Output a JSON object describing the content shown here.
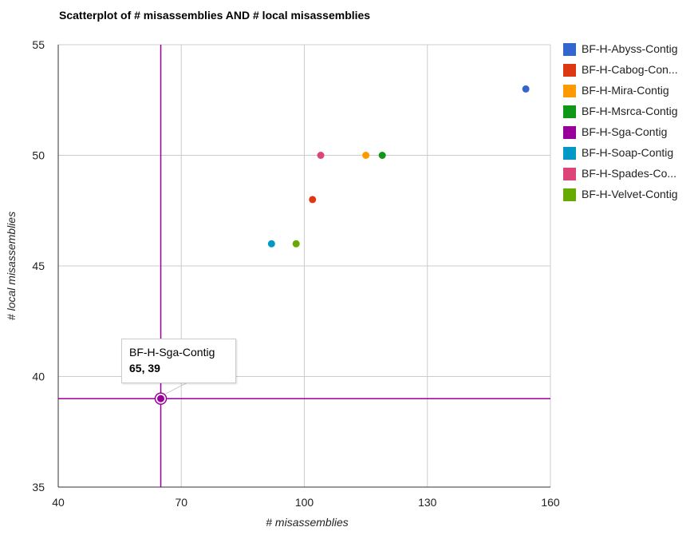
{
  "chart_data": {
    "type": "scatter",
    "title": "Scatterplot of # misassemblies AND # local misassemblies",
    "xlabel": "# misassemblies",
    "ylabel": "# local misassemblies",
    "xlim": [
      40,
      160
    ],
    "ylim": [
      35,
      55
    ],
    "x_ticks": [
      40,
      70,
      100,
      130,
      160
    ],
    "y_ticks": [
      35,
      40,
      45,
      50,
      55
    ],
    "grid": true,
    "legend_position": "right",
    "series": [
      {
        "name": "BF-H-Abyss-Contig",
        "label": "BF-H-Abyss-Contig",
        "color": "#3366cc",
        "x": [
          154
        ],
        "y": [
          53
        ]
      },
      {
        "name": "BF-H-Cabog-Contig",
        "label": "BF-H-Cabog-Con...",
        "color": "#dc3912",
        "x": [
          102
        ],
        "y": [
          48
        ]
      },
      {
        "name": "BF-H-Mira-Contig",
        "label": "BF-H-Mira-Contig",
        "color": "#ff9900",
        "x": [
          115
        ],
        "y": [
          50
        ]
      },
      {
        "name": "BF-H-Msrca-Contig",
        "label": "BF-H-Msrca-Contig",
        "color": "#109618",
        "x": [
          119
        ],
        "y": [
          50
        ]
      },
      {
        "name": "BF-H-Sga-Contig",
        "label": "BF-H-Sga-Contig",
        "color": "#990099",
        "x": [
          65
        ],
        "y": [
          39
        ]
      },
      {
        "name": "BF-H-Soap-Contig",
        "label": "BF-H-Soap-Contig",
        "color": "#0099c6",
        "x": [
          92
        ],
        "y": [
          46
        ]
      },
      {
        "name": "BF-H-Spades-Contig",
        "label": "BF-H-Spades-Co...",
        "color": "#dd4477",
        "x": [
          104
        ],
        "y": [
          50
        ]
      },
      {
        "name": "BF-H-Velvet-Contig",
        "label": "BF-H-Velvet-Contig",
        "color": "#66aa00",
        "x": [
          98
        ],
        "y": [
          46
        ]
      }
    ],
    "highlight": {
      "series_index": 4,
      "name": "BF-H-Sga-Contig",
      "value_text": "65, 39",
      "x": 65,
      "y": 39
    }
  }
}
